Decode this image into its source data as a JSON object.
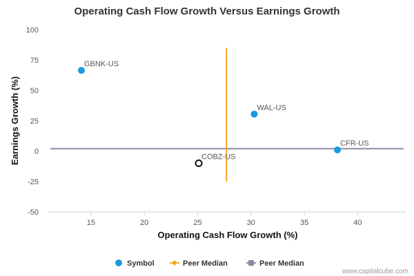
{
  "chart_data": {
    "type": "scatter",
    "title": "Operating Cash Flow Growth Versus Earnings Growth",
    "xlabel": "Operating Cash Flow Growth (%)",
    "ylabel": "Earnings Growth (%)",
    "xlim": [
      11,
      44.5
    ],
    "ylim": [
      -50,
      100
    ],
    "xticks": [
      15,
      20,
      25,
      30,
      35,
      40
    ],
    "yticks": [
      100,
      75,
      50,
      25,
      0,
      -25,
      -50
    ],
    "points": [
      {
        "label": "GBNK-US",
        "x": 14.1,
        "y": 66.5,
        "style": "filled"
      },
      {
        "label": "WAL-US",
        "x": 30.3,
        "y": 30.5,
        "style": "filled"
      },
      {
        "label": "CFR-US",
        "x": 38.1,
        "y": 1.0,
        "style": "filled"
      },
      {
        "label": "COBZ-US",
        "x": 25.1,
        "y": -10.0,
        "style": "hollow"
      }
    ],
    "peer_median_x": {
      "value": 27.7,
      "y_range": [
        -25,
        85
      ]
    },
    "peer_median_y": {
      "value": 2.0,
      "x_range": [
        11.2,
        44.3
      ]
    },
    "legend": {
      "position": "bottom",
      "items": [
        {
          "label": "Symbol",
          "marker": "circle",
          "color": "#1a9ae0"
        },
        {
          "label": "Peer Median",
          "marker": "diamond-line",
          "color": "#f5a623"
        },
        {
          "label": "Peer Median",
          "marker": "square-line",
          "color": "#8a8aa0"
        }
      ]
    },
    "colors": {
      "point": "#1a9ae0",
      "hollow_point": "#111111",
      "vline": "#f5a623",
      "hline": "#8a8aa0",
      "axis": "#c8d2e0"
    }
  },
  "credit": "www.capitalcube.com"
}
